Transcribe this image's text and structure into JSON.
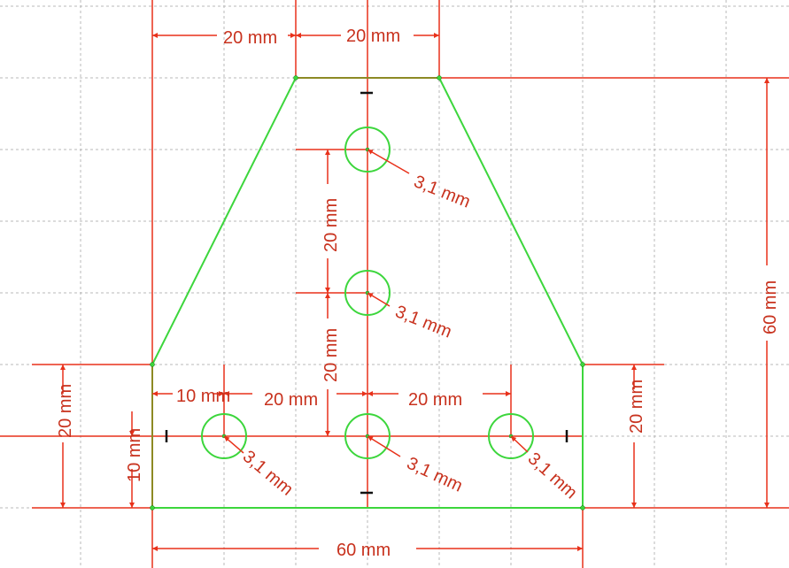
{
  "sketch": {
    "colors": {
      "dimension": "#e8311a",
      "dimension_text": "#c8321e",
      "geometry": "#3cd63c",
      "grid": "#b9b9b9",
      "point": "#b06a1a",
      "marker": "#111111"
    },
    "dimensions": {
      "top_left_width": "20 mm",
      "top_width": "20 mm",
      "overall_height": "60 mm",
      "hole_spacing_upper": "20 mm",
      "hole_spacing_lower": "20 mm",
      "left_lower_height": "20 mm",
      "right_lower_height": "20 mm",
      "hole_row_height": "10 mm",
      "left_hole_offset": "10 mm",
      "left_hole_to_center": "20 mm",
      "center_to_right_hole": "20 mm",
      "base_width": "60 mm"
    },
    "holes": [
      {
        "id": "top-hole",
        "radius_label": "3,1 mm"
      },
      {
        "id": "middle-hole",
        "radius_label": "3,1 mm"
      },
      {
        "id": "left-hole",
        "radius_label": "3,1 mm"
      },
      {
        "id": "center-hole",
        "radius_label": "3,1 mm"
      },
      {
        "id": "right-hole",
        "radius_label": "3,1 mm"
      }
    ]
  }
}
